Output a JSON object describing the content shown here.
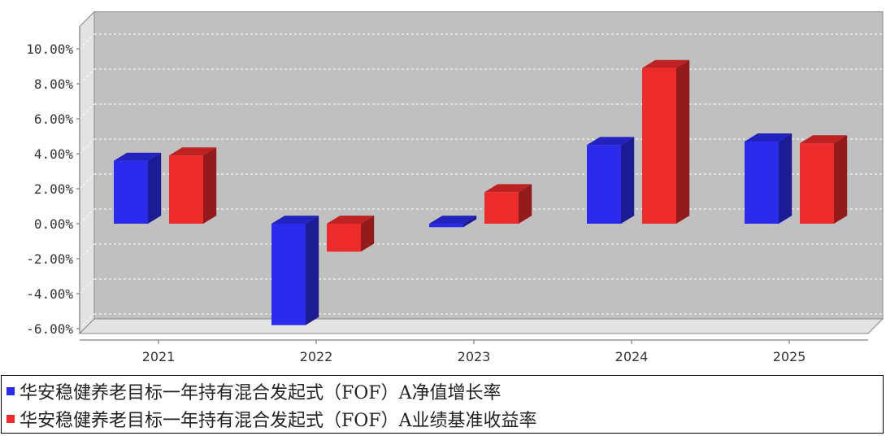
{
  "chart_data": {
    "type": "bar",
    "title": "",
    "xlabel": "",
    "ylabel": "",
    "categories": [
      "2021",
      "2022",
      "2023",
      "2024",
      "2025"
    ],
    "series": [
      {
        "name": "华安稳健养老目标一年持有混合发起式（FOF）A净值增长率",
        "color": "#2b2bee",
        "values": [
          3.6,
          -5.8,
          -0.2,
          4.5,
          4.7
        ]
      },
      {
        "name": "华安稳健养老目标一年持有混合发起式（FOF）A业绩基准收益率",
        "color": "#ee2b2b",
        "values": [
          3.9,
          -1.6,
          1.8,
          8.9,
          4.6
        ]
      }
    ],
    "ylim": [
      -6,
      11
    ],
    "yticks": [
      "10.00%",
      "8.00%",
      "6.00%",
      "4.00%",
      "2.00%",
      "0.00%",
      "-2.00%",
      "-4.00%",
      "-6.00%"
    ],
    "ytick_values": [
      10,
      8,
      6,
      4,
      2,
      0,
      -2,
      -4,
      -6
    ],
    "grid": true,
    "legend_position": "bottom",
    "style": "3d"
  }
}
